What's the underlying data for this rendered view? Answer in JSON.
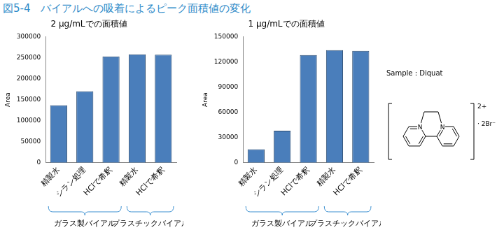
{
  "title": "図5-4　バイアルへの吸着によるピーク面積値の変化",
  "chart_data": [
    {
      "type": "bar",
      "title": "2 μg/mLでの面積値",
      "y_label": "Area",
      "categories": [
        "精製水",
        "シラン処理",
        "HClで希釈",
        "精製水",
        "HClで希釈"
      ],
      "values": [
        137000,
        170000,
        253000,
        258000,
        257000
      ],
      "color": "#4a7ebb",
      "ylim": [
        0,
        300000
      ],
      "yticks": [
        0,
        50000,
        100000,
        150000,
        200000,
        250000,
        300000
      ],
      "grid": false,
      "groups": [
        {
          "label": "ガラス製バイアル",
          "categories": [
            0,
            1,
            2
          ]
        },
        {
          "label": "プラスチックバイアル",
          "categories": [
            3,
            4
          ]
        }
      ]
    },
    {
      "type": "bar",
      "title": "1 μg/mLでの面積値",
      "y_label": "Area",
      "categories": [
        "精製水",
        "シラン処理",
        "HClで希釈",
        "精製水",
        "HClで希釈"
      ],
      "values": [
        16000,
        38000,
        128000,
        134000,
        133000
      ],
      "color": "#4a7ebb",
      "ylim": [
        0,
        150000
      ],
      "yticks": [
        0,
        30000,
        60000,
        90000,
        120000,
        150000
      ],
      "grid": false,
      "groups": [
        {
          "label": "ガラス製バイアル",
          "categories": [
            0,
            1,
            2
          ]
        },
        {
          "label": "プラスチックバイアル",
          "categories": [
            3,
            4
          ]
        }
      ]
    }
  ],
  "sample": {
    "label": "Sample : Diquat",
    "atom": "N",
    "charge": "2+",
    "counterion": "· 2Br⁻"
  }
}
